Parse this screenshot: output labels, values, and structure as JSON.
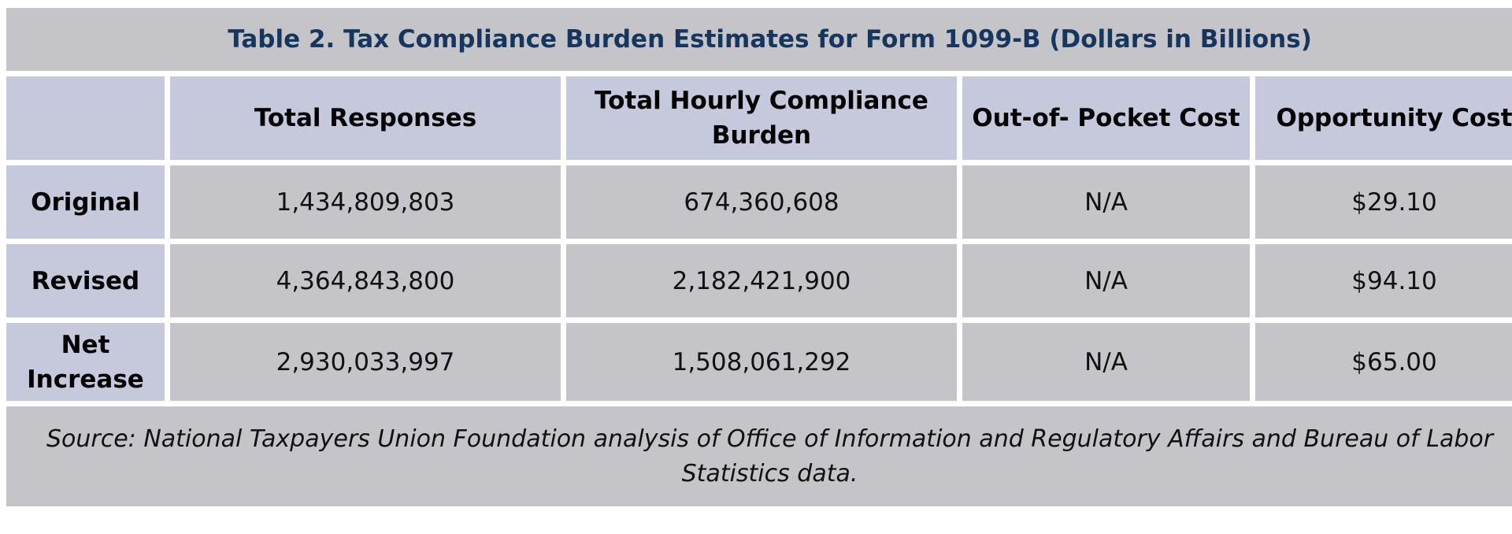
{
  "chart_data": {
    "type": "table",
    "title": "Table 2. Tax Compliance Burden Estimates for Form 1099-B (Dollars in Billions)",
    "columns": [
      "",
      "Total Responses",
      "Total Hourly Compliance Burden",
      "Out-of- Pocket Cost",
      "Opportunity Cost"
    ],
    "rows": [
      {
        "label": "Original",
        "values": [
          "1,434,809,803",
          "674,360,608",
          "N/A",
          "$29.10"
        ]
      },
      {
        "label": "Revised",
        "values": [
          "4,364,843,800",
          "2,182,421,900",
          "N/A",
          "$94.10"
        ]
      },
      {
        "label": "Net Increase",
        "values": [
          "2,930,033,997",
          "1,508,061,292",
          "N/A",
          "$65.00"
        ]
      }
    ],
    "source": "Source: National Taxpayers Union Foundation analysis of Office of Information and Regulatory Affairs and Bureau of Labor Statistics data."
  },
  "colors": {
    "title_text": "#17365d",
    "header_bg": "#c6c8dc",
    "cell_bg": "#c5c5c9"
  }
}
